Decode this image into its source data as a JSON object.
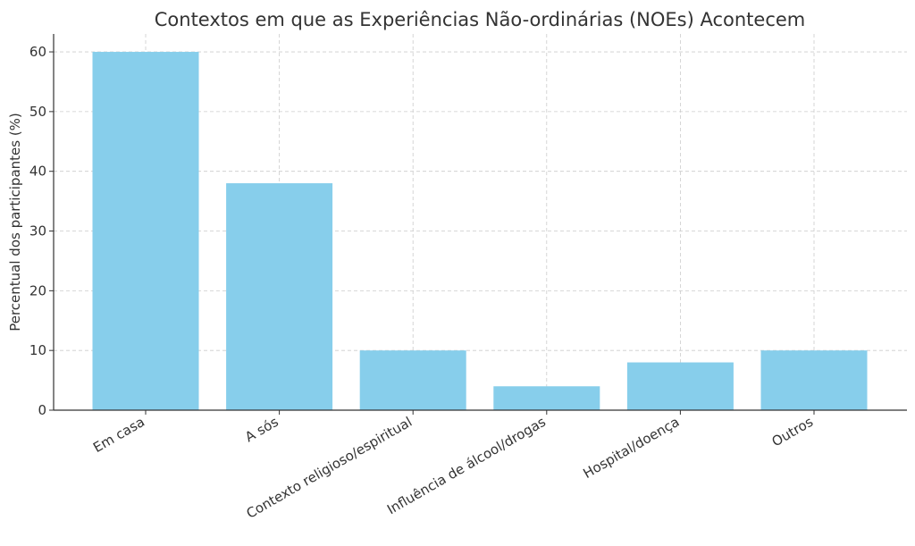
{
  "chart_data": {
    "type": "bar",
    "title": "Contextos em que as Experiências Não-ordinárias (NOEs) Acontecem",
    "xlabel": "",
    "ylabel": "Percentual dos participantes (%)",
    "categories": [
      "Em casa",
      "A sós",
      "Contexto religioso/espiritual",
      "Influência de álcool/drogas",
      "Hospital/doença",
      "Outros"
    ],
    "values": [
      60,
      38,
      10,
      4,
      8,
      10
    ],
    "ylim": [
      0,
      63
    ],
    "yticks": [
      "0",
      "10",
      "20",
      "30",
      "40",
      "50",
      "60"
    ],
    "grid": true,
    "bar_color": "#87ceeb"
  }
}
